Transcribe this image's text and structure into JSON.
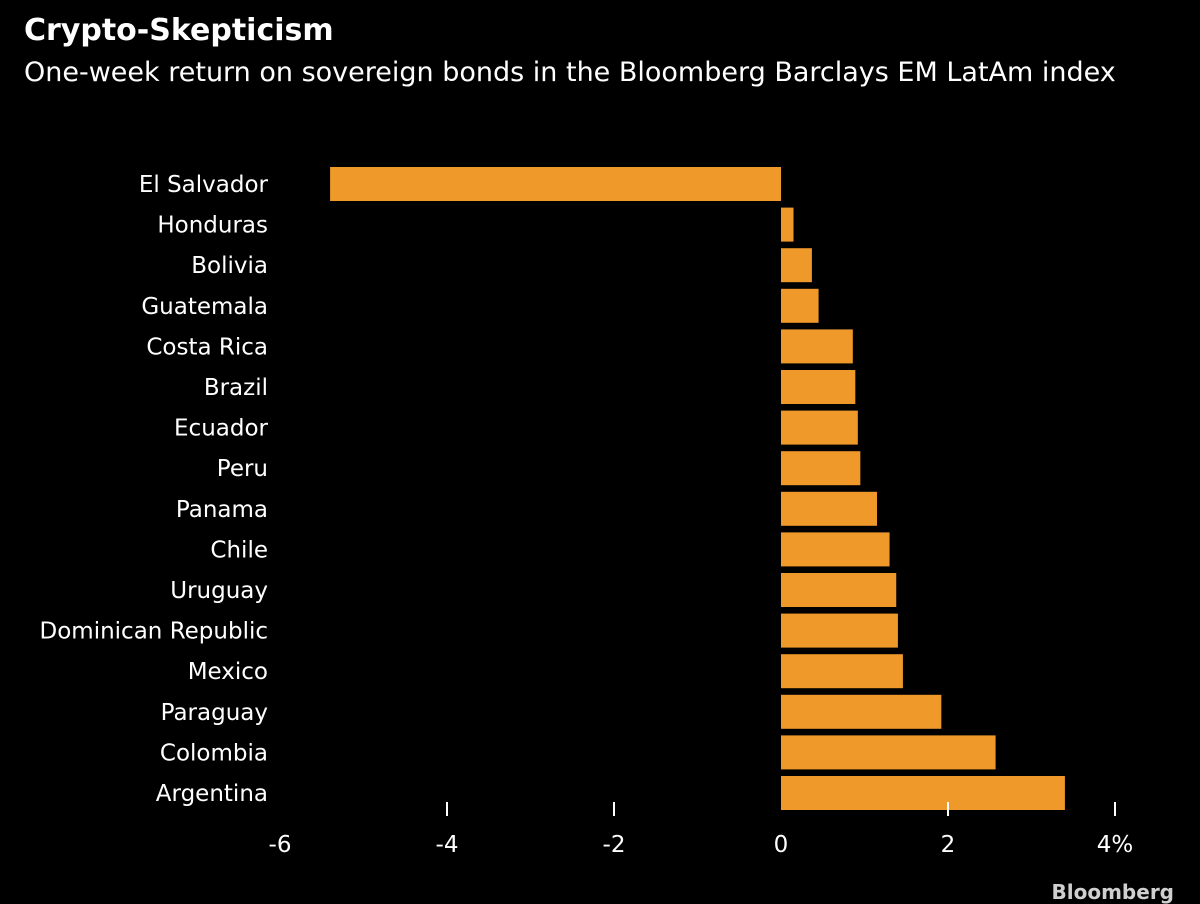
{
  "chart_data": {
    "type": "bar",
    "orientation": "horizontal",
    "title": "Crypto-Skepticism",
    "subtitle": "One-week return on sovereign bonds in the Bloomberg Barclays EM LatAm index",
    "categories": [
      "El Salvador",
      "Honduras",
      "Bolivia",
      "Guatemala",
      "Costa Rica",
      "Brazil",
      "Ecuador",
      "Peru",
      "Panama",
      "Chile",
      "Uruguay",
      "Dominican Republic",
      "Mexico",
      "Paraguay",
      "Colombia",
      "Argentina"
    ],
    "values": [
      -5.4,
      0.15,
      0.37,
      0.45,
      0.86,
      0.89,
      0.92,
      0.95,
      1.15,
      1.3,
      1.38,
      1.4,
      1.46,
      1.92,
      2.57,
      3.4
    ],
    "xlim": [
      -6,
      4
    ],
    "xticks": [
      -6,
      -4,
      -2,
      0,
      2,
      4
    ],
    "xtick_labels": [
      "-6",
      "-4",
      "-2",
      "0",
      "2",
      "4%"
    ],
    "xlabel": "",
    "ylabel": "",
    "bar_color": "#F0992B",
    "background": "#000000",
    "grid": false
  },
  "source": "Bloomberg"
}
